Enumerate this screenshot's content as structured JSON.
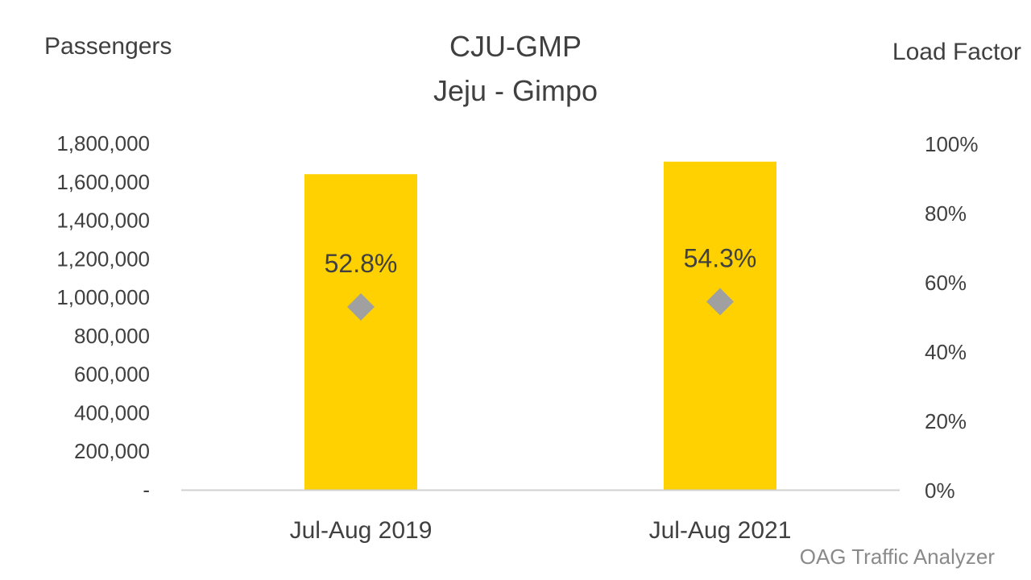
{
  "chart_data": {
    "type": "bar",
    "title": "CJU-GMP",
    "subtitle": "Jeju - Gimpo",
    "ylabel": "Passengers",
    "y2label": "Load Factor",
    "categories": [
      "Jul-Aug 2019",
      "Jul-Aug 2021"
    ],
    "series": [
      {
        "kind": "bar",
        "axis": "left",
        "values": [
          1640000,
          1705000
        ]
      },
      {
        "kind": "marker",
        "marker": "diamond",
        "axis": "right",
        "values": [
          52.8,
          54.3
        ],
        "labels": [
          "52.8%",
          "54.3%"
        ]
      }
    ],
    "ylim": [
      0,
      1800000
    ],
    "y2lim": [
      0,
      100
    ],
    "yticks": [
      "-",
      "200,000",
      "400,000",
      "600,000",
      "800,000",
      "1,000,000",
      "1,200,000",
      "1,400,000",
      "1,600,000",
      "1,800,000"
    ],
    "y2ticks": [
      "0%",
      "20%",
      "40%",
      "60%",
      "80%",
      "100%"
    ],
    "grid": false,
    "legend": "none",
    "colors": {
      "bar": "#FFD100",
      "marker": "#A0A0A0",
      "baseline": "#D0D0D0",
      "text": "#404040"
    }
  },
  "footer": {
    "source": "OAG Traffic Analyzer"
  }
}
